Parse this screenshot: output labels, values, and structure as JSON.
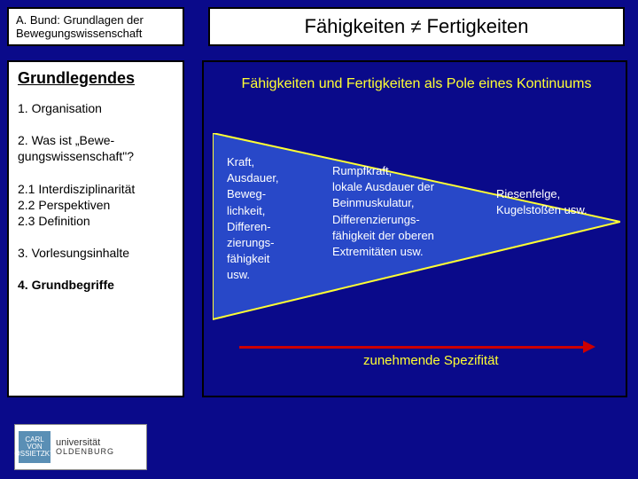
{
  "header": {
    "source": "A. Bund: Grundlagen der Bewegungswissenschaft",
    "title": "Fähigkeiten ≠ Fertigkeiten"
  },
  "sidebar": {
    "heading": "Grundlegendes",
    "items": [
      {
        "label": "1. Organisation",
        "active": false
      },
      {
        "label": "2. Was ist „Bewe-\ngungswissenschaft\"?",
        "active": false
      },
      {
        "label": "2.1 Interdisziplinarität\n2.2 Perspektiven\n2.3 Definition",
        "active": false
      },
      {
        "label": "3. Vorlesungsinhalte",
        "active": false
      },
      {
        "label": "4. Grundbegriffe",
        "active": true
      }
    ]
  },
  "main": {
    "subtitle": "Fähigkeiten und Fertigkeiten als Pole eines Kontinuums",
    "triangle": {
      "fill": "#2848c8",
      "stroke": "#ffff33",
      "columns": [
        "Kraft,\nAusdauer,\nBeweg-\nlichkeit,\nDifferen-\nzierungs-\nfähigkeit\nusw.",
        "Rumpfkraft,\nlokale Ausdauer der\nBeinmuskulatur,\nDifferenzierungs-\nfähigkeit der oberen\nExtremitäten usw.",
        "Riesenfelge,\nKugelstoßen usw."
      ]
    },
    "arrow": {
      "color": "#cc0000",
      "label": "zunehmende Spezifität"
    }
  },
  "logo": {
    "icon_text": "CARL\nVON\nOSSIETZKY",
    "name": "universität",
    "subname": "OLDENBURG"
  },
  "colors": {
    "background": "#0a0a8a",
    "accent": "#ffff33"
  }
}
